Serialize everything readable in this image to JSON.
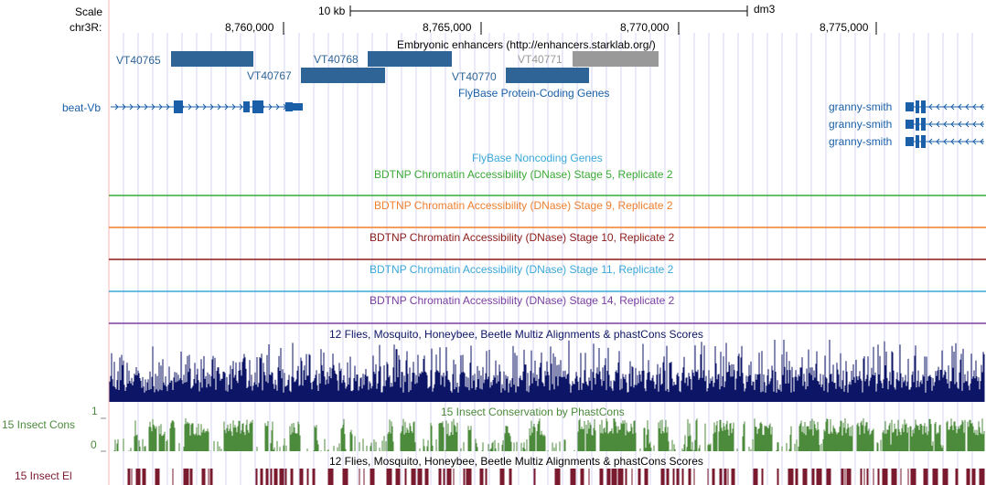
{
  "header": {
    "scale_label": "Scale",
    "scale_value": "10 kb",
    "assembly": "dm3",
    "chrom_label": "chr3R:",
    "positions": [
      "8,760,000",
      "8,765,000",
      "8,770,000",
      "8,775,000"
    ]
  },
  "tracks": {
    "enhancers": {
      "title": "Embryonic enhancers (http://enhancers.starklab.org/)",
      "items": [
        {
          "name": "VT40765",
          "shade": "dark"
        },
        {
          "name": "VT40767",
          "shade": "dark"
        },
        {
          "name": "VT40768",
          "shade": "dark"
        },
        {
          "name": "VT40770",
          "shade": "dark"
        },
        {
          "name": "VT40771",
          "shade": "light"
        }
      ]
    },
    "coding_genes": {
      "title": "FlyBase Protein-Coding Genes",
      "left_gene": "beat-Vb",
      "right_genes": [
        "granny-smith",
        "granny-smith",
        "granny-smith"
      ]
    },
    "noncoding_genes": {
      "title": "FlyBase Noncoding Genes"
    },
    "dnase": [
      {
        "title": "BDTNP Chromatin Accessibility (DNase) Stage 5, Replicate 2",
        "color": "#3aaa35"
      },
      {
        "title": "BDTNP Chromatin Accessibility (DNase) Stage 9, Replicate 2",
        "color": "#f07f2e"
      },
      {
        "title": "BDTNP Chromatin Accessibility (DNase) Stage 10, Replicate 2",
        "color": "#8b1a1a"
      },
      {
        "title": "BDTNP Chromatin Accessibility (DNase) Stage 11, Replicate 2",
        "color": "#3aa8d8"
      },
      {
        "title": "BDTNP Chromatin Accessibility (DNase) Stage 14, Replicate 2",
        "color": "#7a3fa0"
      }
    ],
    "multiz": {
      "title": "12 Flies, Mosquito, Honeybee, Beetle Multiz Alignments & phastCons Scores",
      "color": "#0d1566"
    },
    "phastcons": {
      "title": "15 Insect Conservation by PhastCons",
      "left_label": "15 Insect Cons",
      "axis_max": "1",
      "axis_min": "0",
      "color": "#4c8a3c"
    },
    "elements": {
      "title": "12 Flies, Mosquito, Honeybee, Beetle Multiz Alignments & phastCons Scores",
      "left_label": "15 Insect El",
      "color": "#7a1a2e"
    }
  },
  "colors": {
    "gene_blue": "#1a5fa8",
    "enhancer_dark": "#2e6496",
    "enhancer_light": "#999999",
    "grid_line": "#d6d6f0",
    "left_margin": "#f4b4b4"
  }
}
